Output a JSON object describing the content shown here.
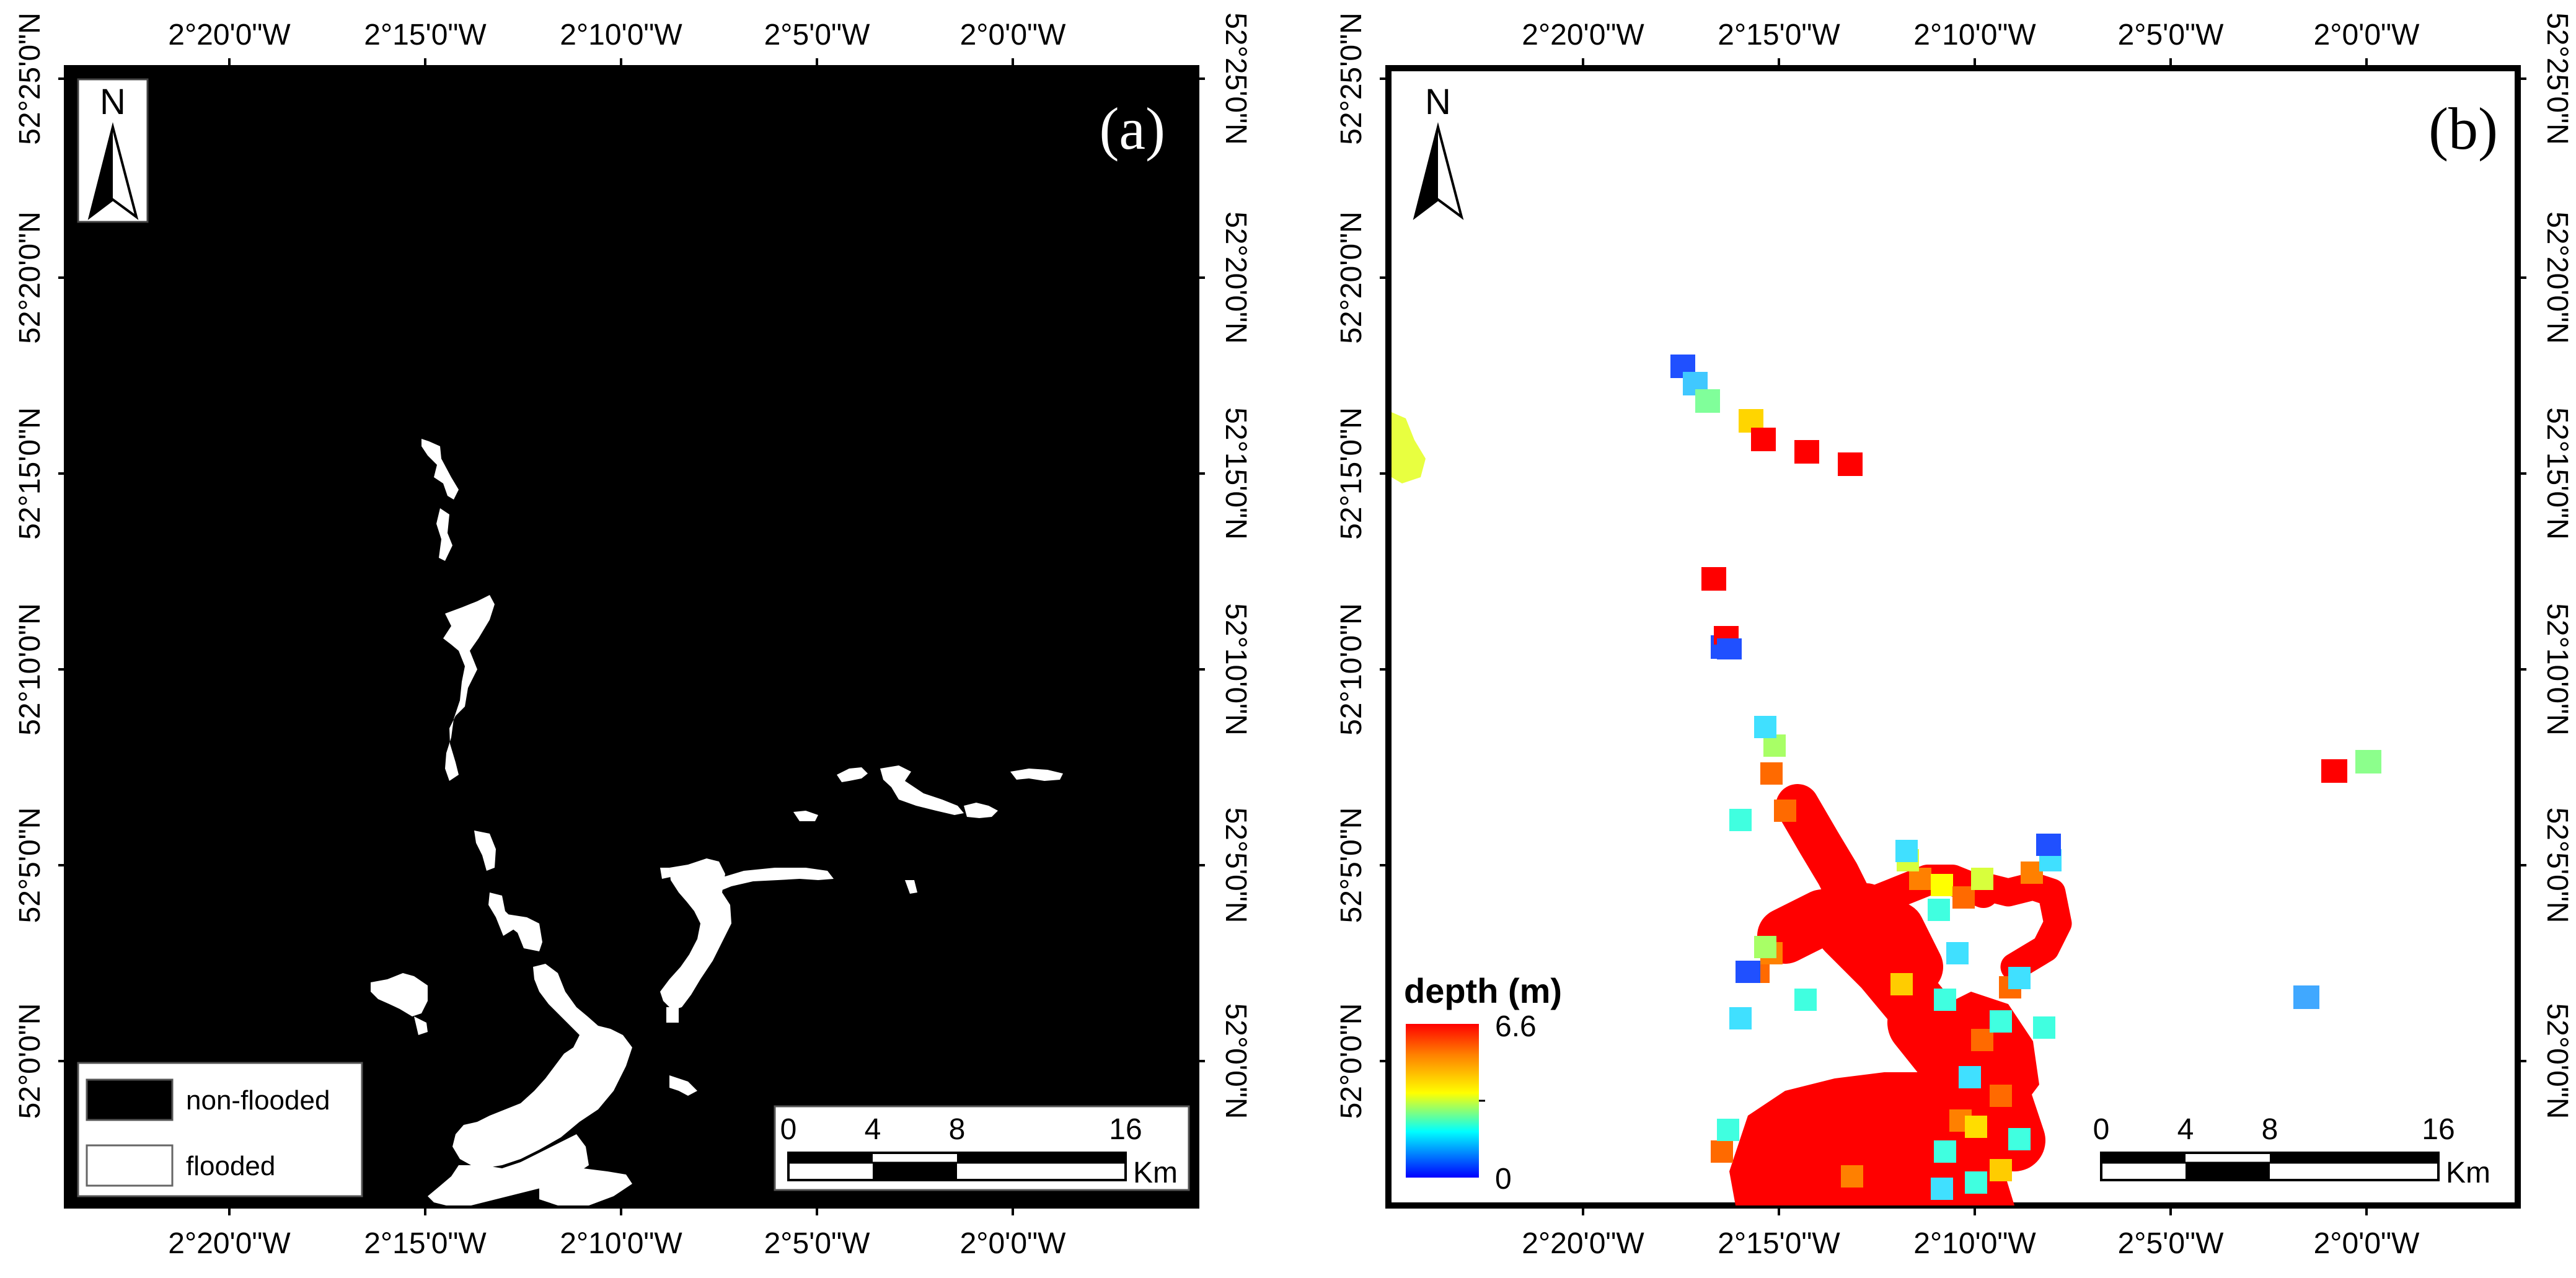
{
  "panel_a": {
    "label": "(a)",
    "north": "N",
    "legend": {
      "non_flooded": "non-flooded",
      "flooded": "flooded",
      "non_flooded_color": "#000000",
      "flooded_color": "#ffffff"
    },
    "scalebar": {
      "ticks": [
        "0",
        "4",
        "8",
        "16"
      ],
      "unit": "Km"
    },
    "x_ticks": [
      "2°20'0\"W",
      "2°15'0\"W",
      "2°10'0\"W",
      "2°5'0\"W",
      "2°0'0\"W"
    ],
    "y_ticks": [
      "52°25'0\"N",
      "52°20'0\"N",
      "52°15'0\"N",
      "52°10'0\"N",
      "52°5'0\"N",
      "52°0'0\"N"
    ]
  },
  "panel_b": {
    "label": "(b)",
    "north": "N",
    "colorbar": {
      "title": "depth (m)",
      "max_label": "6.6",
      "min_label": "0",
      "min": 0,
      "max": 6.6,
      "colors": [
        "#0000ff",
        "#00ffff",
        "#ffff00",
        "#ff0000"
      ]
    },
    "scalebar": {
      "ticks": [
        "0",
        "4",
        "8",
        "16"
      ],
      "unit": "Km"
    },
    "x_ticks": [
      "2°20'0\"W",
      "2°15'0\"W",
      "2°10'0\"W",
      "2°5'0\"W",
      "2°0'0\"W"
    ],
    "y_ticks": [
      "52°25'0\"N",
      "52°20'0\"N",
      "52°15'0\"N",
      "52°10'0\"N",
      "52°5'0\"N",
      "52°0'0\"N"
    ]
  }
}
